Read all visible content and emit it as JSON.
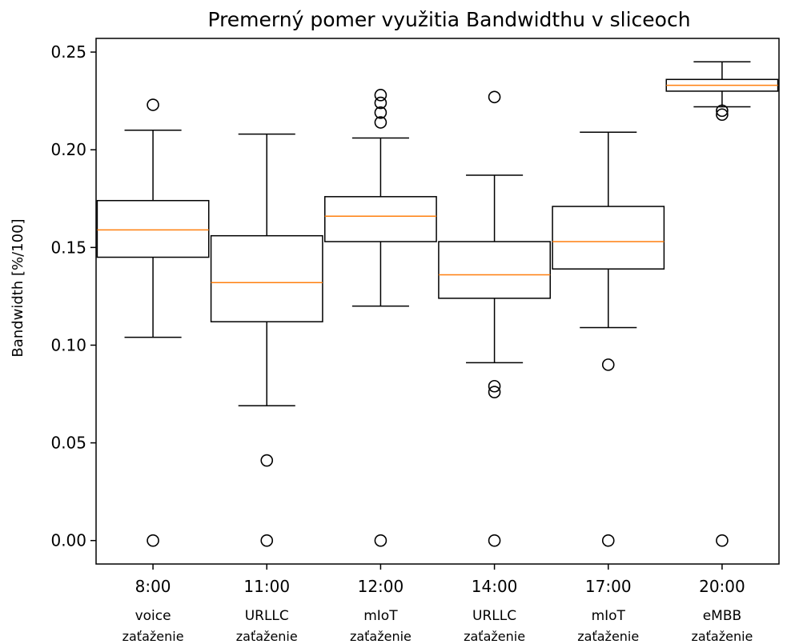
{
  "chart_data": {
    "type": "box",
    "title": "Premerný pomer využitia Bandwidthu v sliceoch",
    "ylabel": "Bandwidth [%/100]",
    "xlabel": "",
    "ylim": [
      -0.012,
      0.257
    ],
    "yticks": [
      "0.00",
      "0.05",
      "0.10",
      "0.15",
      "0.20",
      "0.25"
    ],
    "grid": false,
    "categories": [
      {
        "time": "8:00",
        "slice": "voice",
        "note": "zaťaženie"
      },
      {
        "time": "11:00",
        "slice": "URLLC",
        "note": "zaťaženie"
      },
      {
        "time": "12:00",
        "slice": "mIoT",
        "note": "zaťaženie"
      },
      {
        "time": "14:00",
        "slice": "URLLC",
        "note": "zaťaženie"
      },
      {
        "time": "17:00",
        "slice": "mIoT",
        "note": "zaťaženie"
      },
      {
        "time": "20:00",
        "slice": "eMBB",
        "note": "zaťaženie"
      }
    ],
    "boxes": [
      {
        "whisker_low": 0.104,
        "q1": 0.145,
        "median": 0.159,
        "q3": 0.174,
        "whisker_high": 0.21,
        "outliers": [
          0.223,
          0.0
        ]
      },
      {
        "whisker_low": 0.069,
        "q1": 0.112,
        "median": 0.132,
        "q3": 0.156,
        "whisker_high": 0.208,
        "outliers": [
          0.041,
          0.0
        ]
      },
      {
        "whisker_low": 0.12,
        "q1": 0.153,
        "median": 0.166,
        "q3": 0.176,
        "whisker_high": 0.206,
        "outliers": [
          0.214,
          0.219,
          0.224,
          0.228,
          0.0
        ]
      },
      {
        "whisker_low": 0.091,
        "q1": 0.124,
        "median": 0.136,
        "q3": 0.153,
        "whisker_high": 0.187,
        "outliers": [
          0.227,
          0.079,
          0.076,
          0.0
        ]
      },
      {
        "whisker_low": 0.109,
        "q1": 0.139,
        "median": 0.153,
        "q3": 0.171,
        "whisker_high": 0.209,
        "outliers": [
          0.09,
          0.0
        ]
      },
      {
        "whisker_low": 0.222,
        "q1": 0.23,
        "median": 0.233,
        "q3": 0.236,
        "whisker_high": 0.245,
        "outliers": [
          0.22,
          0.218,
          0.0
        ]
      }
    ],
    "colors": {
      "box": "#000000",
      "median": "#ff7f0e",
      "outlier": "#000000"
    }
  }
}
